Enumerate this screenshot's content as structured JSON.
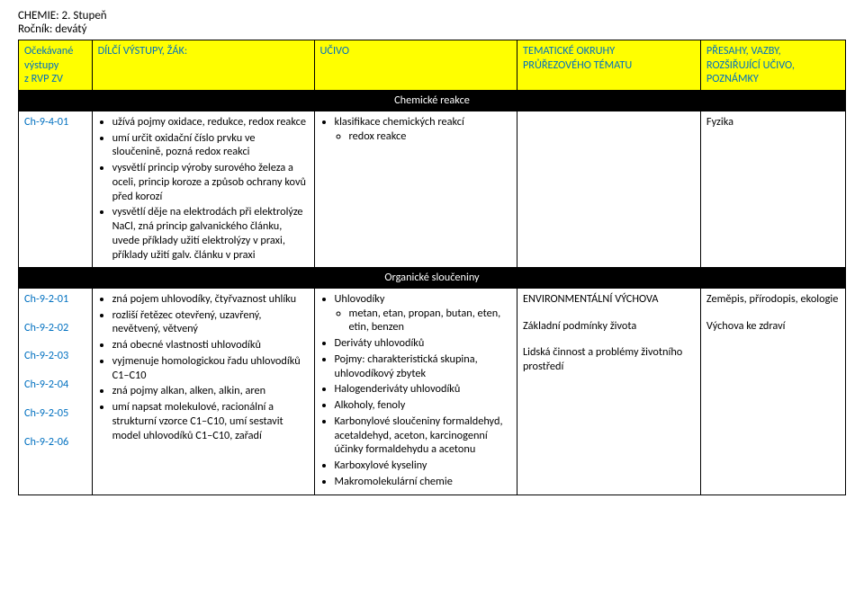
{
  "doc": {
    "title": "CHEMIE: 2. Stupeň",
    "grade": "Ročník: devátý"
  },
  "headers": {
    "col0a": "Očekávané",
    "col0b": "výstupy",
    "col0c": "z RVP ZV",
    "col1": "DÍLČÍ VÝSTUPY, ŽÁK:",
    "col2": "UČIVO",
    "col3a": "TEMATICKÉ OKRUHY",
    "col3b": "PRŮŘEZOVÉHO TÉMATU",
    "col4a": "PŘESAHY, VAZBY,",
    "col4b": "ROZŠIŘUJÍCÍ UČIVO,",
    "col4c": "POZNÁMKY"
  },
  "section1": {
    "title": "Chemické reakce",
    "code": "Ch-9-4-01",
    "outcomes": [
      "užívá pojmy oxidace, redukce, redox reakce",
      "umí určit oxidační číslo prvku ve sloučenině, pozná redox reakci",
      "vysvětlí princip výroby surového železa a oceli, princip koroze a způsob ochrany kovů před korozí",
      "vysvětlí děje na elektrodách při elektrolýze NaCl, zná princip galvanického článku, uvede příklady užití elektrolýzy v praxi, příklady užití galv. článku v praxi"
    ],
    "ucivo_main": "klasifikace chemických reakcí",
    "ucivo_sub": "redox reakce",
    "presahy": "Fyzika"
  },
  "section2": {
    "title": "Organické sloučeniny",
    "codes": [
      "Ch-9-2-01",
      "Ch-9-2-02",
      "Ch-9-2-03",
      "Ch-9-2-04",
      "Ch-9-2-05",
      "Ch-9-2-06"
    ],
    "outcomes": [
      "zná pojem uhlovodíky, čtyřvaznost uhlíku",
      "rozliší řetězec otevřený, uzavřený, nevětvený, větvený",
      "zná obecné vlastnosti uhlovodíků",
      "vyjmenuje homologickou řadu uhlovodíků C1–C10",
      "zná pojmy alkan, alken, alkin, aren",
      "umí napsat molekulové, racionální a strukturní vzorce C1–C10, umí sestavit model uhlovodíků  C1–C10, zařadí"
    ],
    "ucivo": [
      {
        "t": "Uhlovodíky",
        "sub": "metan, etan, propan, butan, eten, etin, benzen"
      },
      {
        "t": "Deriváty uhlovodíků"
      },
      {
        "t": "Pojmy: charakteristická skupina, uhlovodíkový zbytek"
      },
      {
        "t": "Halogenderiváty uhlovodíků"
      },
      {
        "t": "Alkoholy, fenoly"
      },
      {
        "t": "Karbonylové sloučeniny formaldehyd, acetaldehyd, aceton, karcinogenní účinky formaldehydu a acetonu"
      },
      {
        "t": "Karboxylové kyseliny"
      },
      {
        "t": "Makromolekulární chemie"
      }
    ],
    "tema": {
      "l1": "ENVIRONMENTÁLNÍ VÝCHOVA",
      "l2": "Základní podmínky života",
      "l3": "Lidská činnost a problémy životního prostředí"
    },
    "presahy": {
      "l1": "Zeměpis, přírodopis, ekologie",
      "l2": "Výchova ke zdraví"
    }
  },
  "colors": {
    "header_bg": "#ffff00",
    "header_text": "#0070c0",
    "section_bg": "#000000",
    "section_text": "#ffffff",
    "border": "#000000",
    "page_bg": "#ffffff"
  }
}
